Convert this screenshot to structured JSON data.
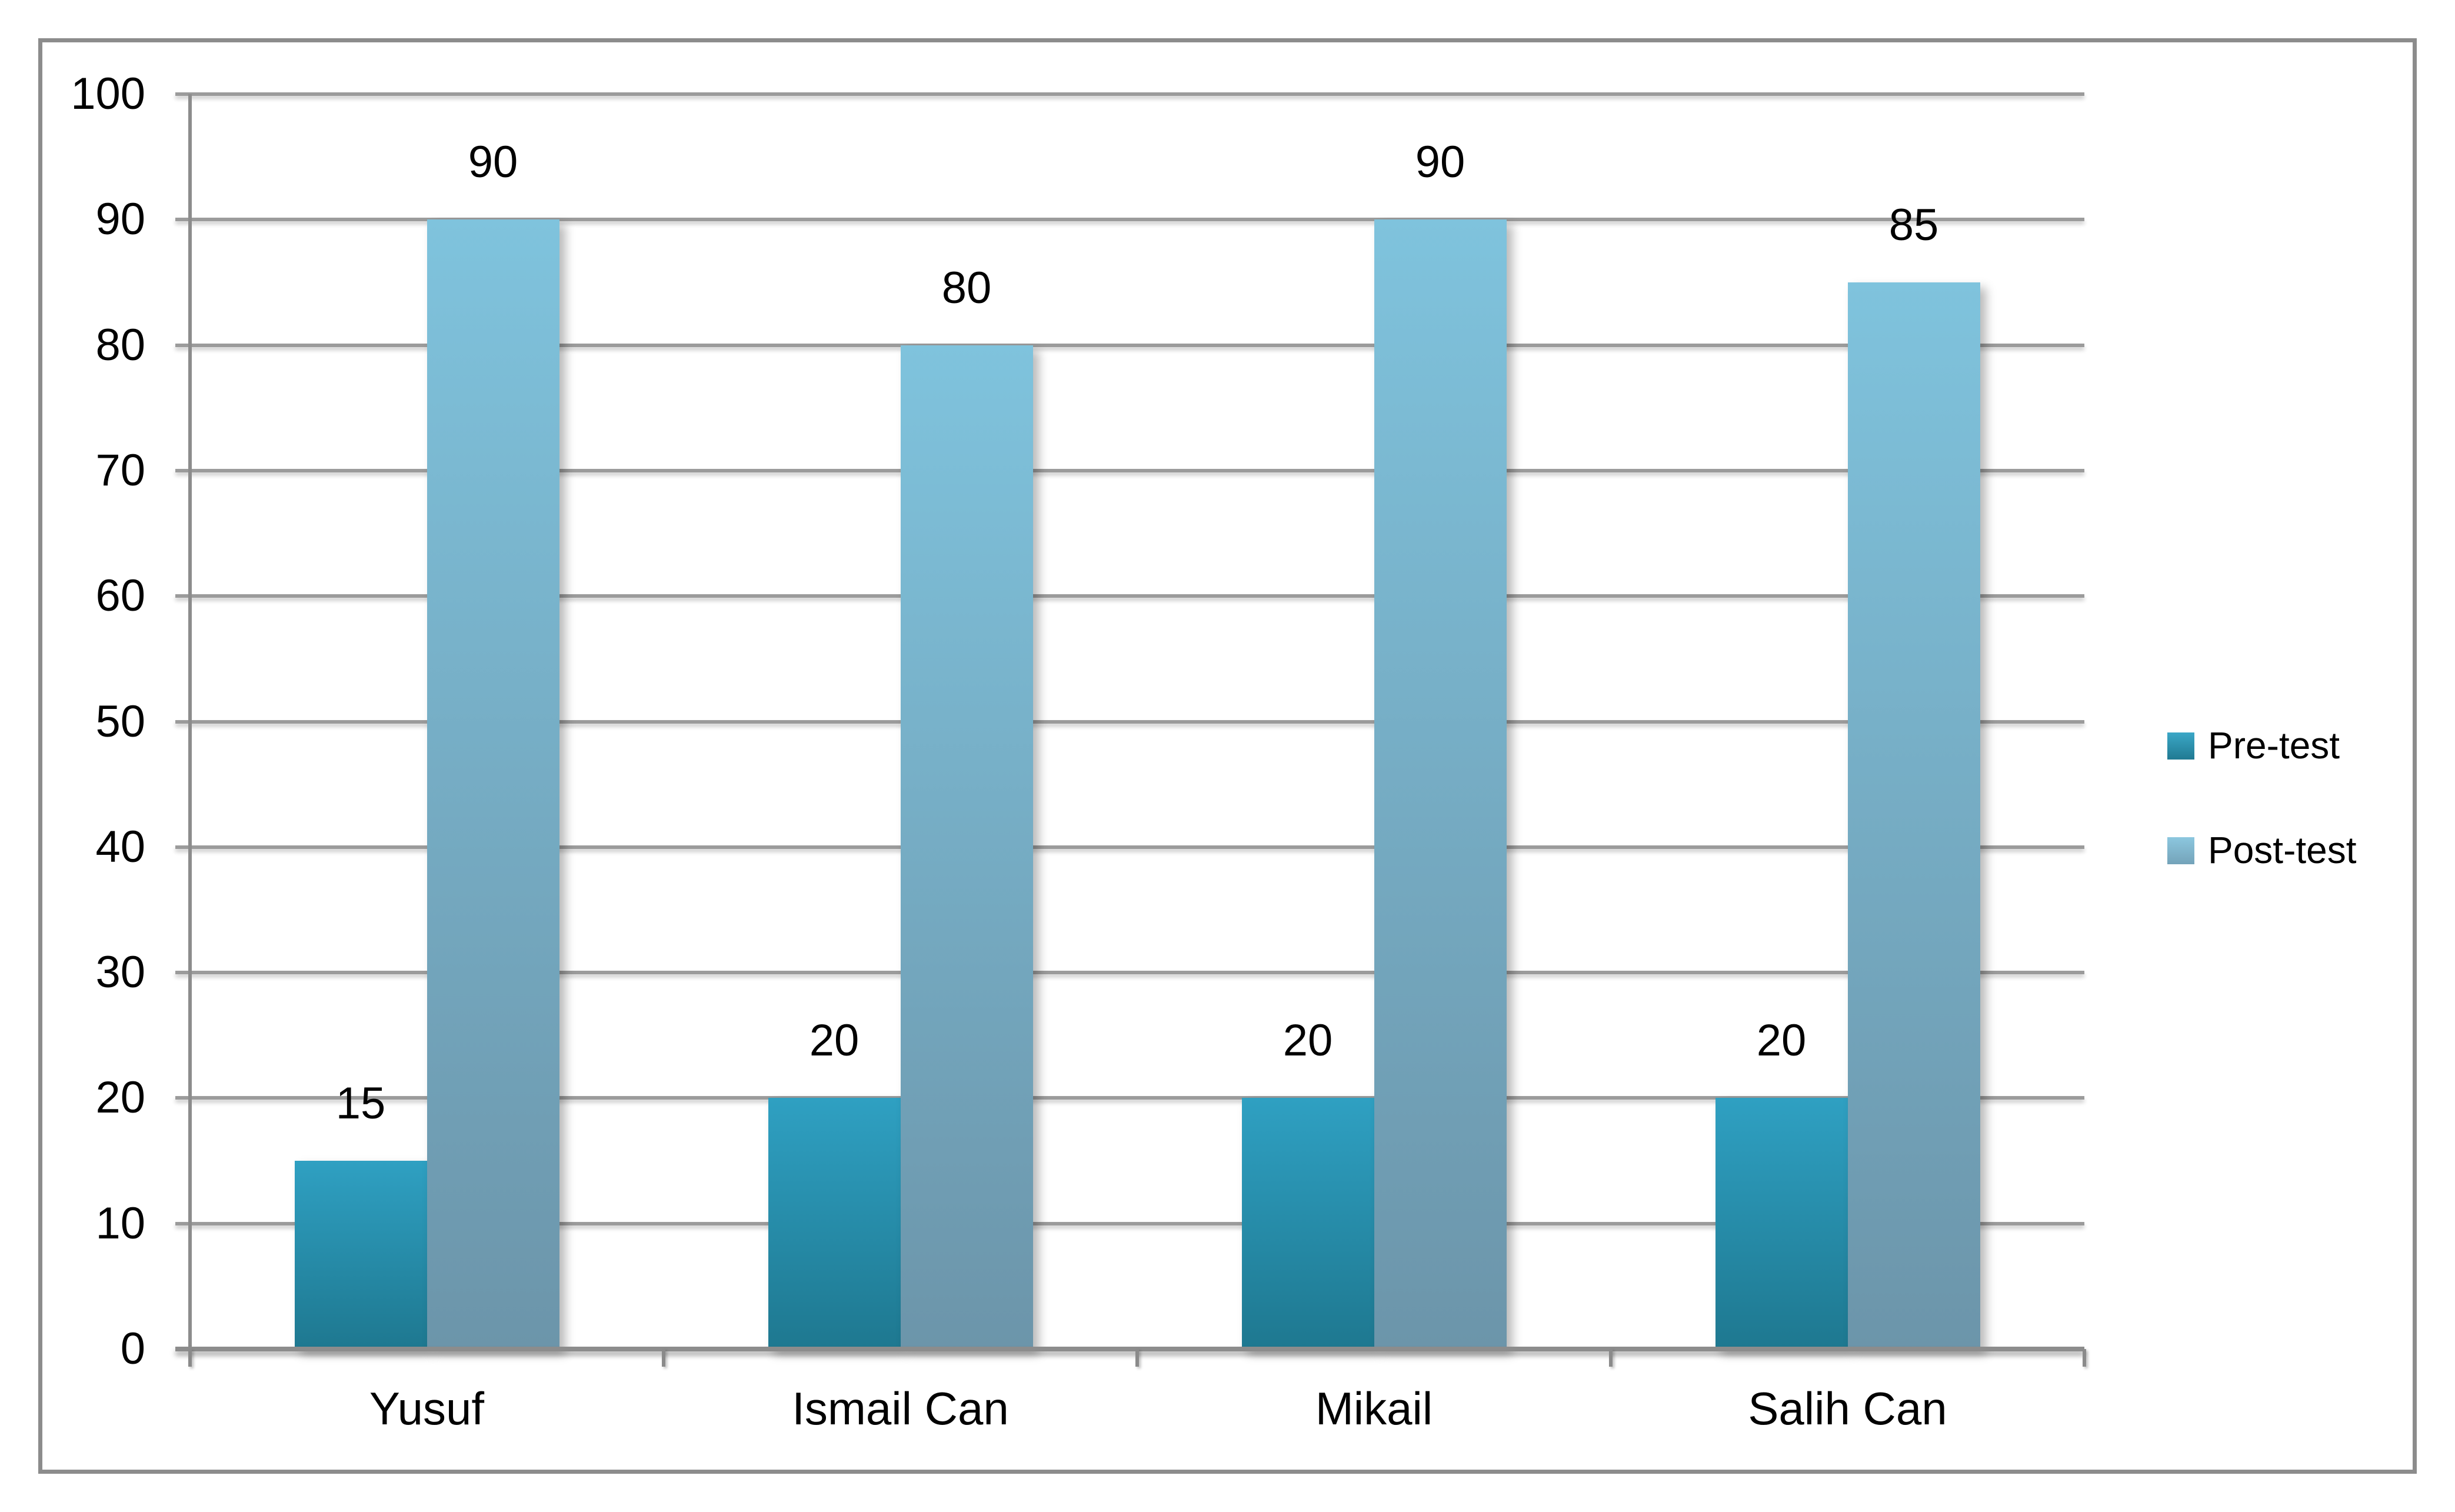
{
  "chart_data": {
    "type": "bar",
    "title": "",
    "xlabel": "",
    "ylabel": "",
    "categories": [
      "Yusuf",
      "Ismail Can",
      "Mikail",
      "Salih Can"
    ],
    "series": [
      {
        "name": "Pre-test",
        "values": [
          15,
          20,
          20,
          20
        ]
      },
      {
        "name": "Post-test",
        "values": [
          90,
          80,
          90,
          85
        ]
      }
    ],
    "ylim": [
      0,
      100
    ],
    "yticks": [
      0,
      10,
      20,
      30,
      40,
      50,
      60,
      70,
      80,
      90,
      100
    ],
    "grid": true,
    "data_labels": true,
    "legend_position": "right",
    "colors": {
      "pretest_top": "#2FA0C2",
      "pretest_bottom": "#1E7890",
      "posttest_top": "#7FC3DD",
      "posttest_bottom": "#6C95AA",
      "legend_pretest_top": "#3BA7C7",
      "legend_pretest_bottom": "#207A92",
      "legend_posttest_top": "#8CC7DF",
      "legend_posttest_bottom": "#74A3B9",
      "gridline": "#9B9B9B",
      "axis": "#8C8C8C",
      "frame_border": "#8C8C8C",
      "label_text": "#000000"
    }
  }
}
